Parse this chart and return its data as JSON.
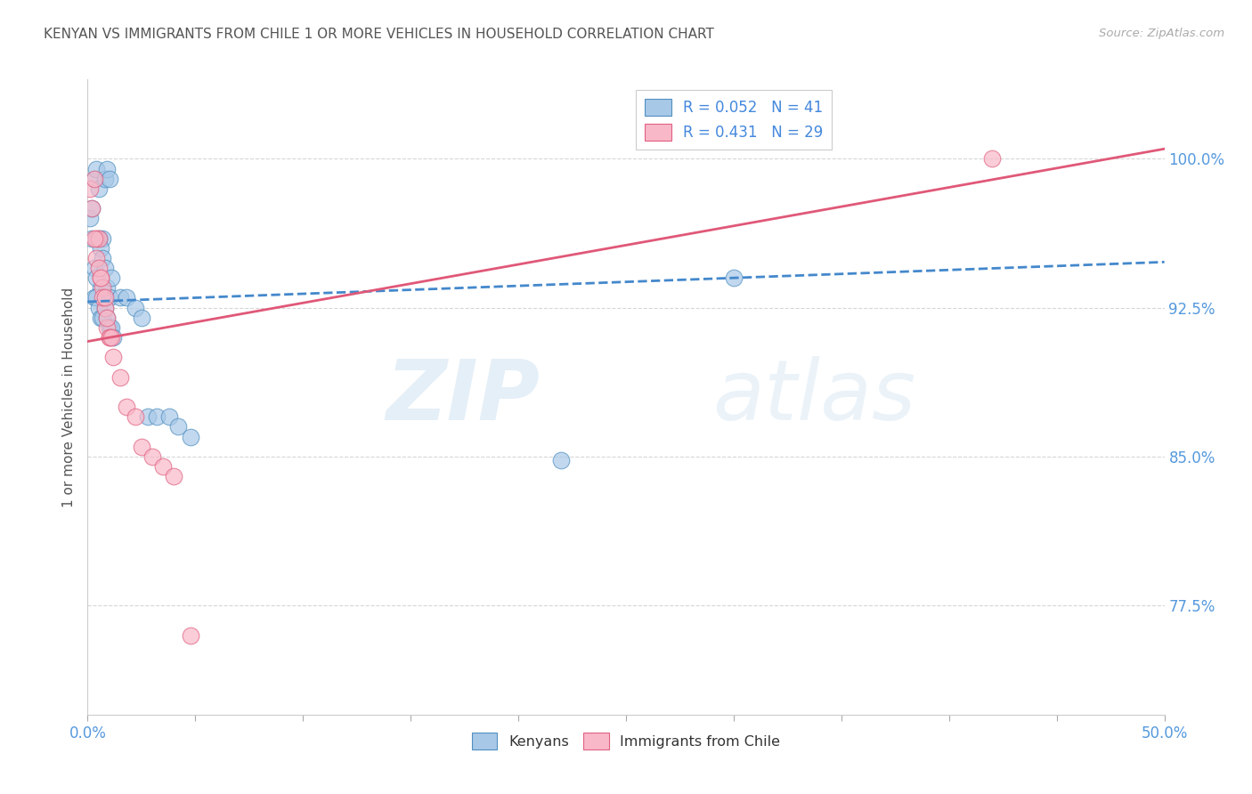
{
  "title": "KENYAN VS IMMIGRANTS FROM CHILE 1 OR MORE VEHICLES IN HOUSEHOLD CORRELATION CHART",
  "source": "Source: ZipAtlas.com",
  "ylabel": "1 or more Vehicles in Household",
  "yticks": [
    "100.0%",
    "92.5%",
    "85.0%",
    "77.5%"
  ],
  "ytick_values": [
    1.0,
    0.925,
    0.85,
    0.775
  ],
  "xmin": 0.0,
  "xmax": 0.5,
  "ymin": 0.72,
  "ymax": 1.04,
  "legend_r1": "R = 0.052",
  "legend_n1": "N = 41",
  "legend_r2": "R = 0.431",
  "legend_n2": "N = 29",
  "watermark_zip": "ZIP",
  "watermark_atlas": "atlas",
  "blue_color": "#a8c8e8",
  "pink_color": "#f8b8c8",
  "blue_edge_color": "#5090c0",
  "pink_edge_color": "#e06080",
  "blue_line_color": "#4488cc",
  "pink_line_color": "#e05878",
  "title_color": "#555555",
  "axis_label_color": "#5599dd",
  "tick_label_color": "#5599dd",
  "legend_text_color": "#4488dd",
  "grid_color": "#cccccc",
  "background_color": "#ffffff",
  "blue_scatter_x": [
    0.001,
    0.002,
    0.003,
    0.004,
    0.005,
    0.006,
    0.007,
    0.008,
    0.009,
    0.01,
    0.002,
    0.003,
    0.004,
    0.005,
    0.006,
    0.007,
    0.008,
    0.009,
    0.01,
    0.011,
    0.003,
    0.004,
    0.005,
    0.006,
    0.007,
    0.008,
    0.009,
    0.01,
    0.011,
    0.012,
    0.015,
    0.018,
    0.022,
    0.025,
    0.028,
    0.032,
    0.038,
    0.042,
    0.048,
    0.3,
    0.22
  ],
  "blue_scatter_y": [
    0.97,
    0.975,
    0.99,
    0.995,
    0.985,
    0.935,
    0.96,
    0.99,
    0.995,
    0.99,
    0.96,
    0.945,
    0.94,
    0.96,
    0.955,
    0.95,
    0.945,
    0.935,
    0.93,
    0.94,
    0.93,
    0.93,
    0.925,
    0.92,
    0.92,
    0.925,
    0.92,
    0.915,
    0.915,
    0.91,
    0.93,
    0.93,
    0.925,
    0.92,
    0.87,
    0.87,
    0.87,
    0.865,
    0.86,
    0.94,
    0.848
  ],
  "pink_scatter_x": [
    0.001,
    0.002,
    0.003,
    0.004,
    0.005,
    0.006,
    0.007,
    0.008,
    0.009,
    0.01,
    0.003,
    0.004,
    0.005,
    0.006,
    0.007,
    0.008,
    0.009,
    0.01,
    0.011,
    0.012,
    0.015,
    0.018,
    0.022,
    0.025,
    0.03,
    0.035,
    0.04,
    0.048,
    0.42
  ],
  "pink_scatter_y": [
    0.985,
    0.975,
    0.99,
    0.96,
    0.96,
    0.94,
    0.935,
    0.925,
    0.915,
    0.91,
    0.96,
    0.95,
    0.945,
    0.94,
    0.93,
    0.93,
    0.92,
    0.91,
    0.91,
    0.9,
    0.89,
    0.875,
    0.87,
    0.855,
    0.85,
    0.845,
    0.84,
    0.76,
    1.0
  ],
  "blue_trend_x": [
    0.0,
    0.5
  ],
  "blue_trend_y": [
    0.928,
    0.948
  ],
  "pink_trend_x": [
    0.0,
    0.5
  ],
  "pink_trend_y": [
    0.908,
    1.005
  ]
}
